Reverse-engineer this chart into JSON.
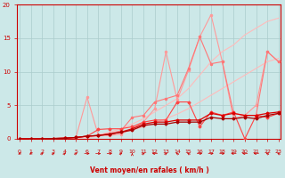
{
  "x": [
    0,
    1,
    2,
    3,
    4,
    5,
    6,
    7,
    8,
    9,
    10,
    11,
    12,
    13,
    14,
    15,
    16,
    17,
    18,
    19,
    20,
    21,
    22,
    23
  ],
  "lines": [
    {
      "y": [
        0,
        0,
        0,
        0,
        0,
        0.1,
        0.2,
        0.4,
        0.6,
        0.9,
        1.3,
        1.8,
        2.4,
        3.0,
        3.7,
        4.5,
        5.5,
        6.5,
        7.5,
        8.5,
        9.5,
        10.5,
        11.5,
        12.0
      ],
      "color": "#ffbbbb",
      "lw": 0.8,
      "marker": null
    },
    {
      "y": [
        0,
        0,
        0,
        0,
        0.05,
        0.15,
        0.3,
        0.6,
        1.0,
        1.5,
        2.2,
        3.0,
        4.0,
        5.0,
        6.0,
        7.5,
        9.5,
        11.5,
        13.0,
        14.0,
        15.5,
        16.5,
        17.5,
        18.0
      ],
      "color": "#ffbbbb",
      "lw": 0.8,
      "marker": null
    },
    {
      "y": [
        0,
        0,
        0,
        0.05,
        0.1,
        0.2,
        6.2,
        0.5,
        0.5,
        0.7,
        1.5,
        2.5,
        4.5,
        13.0,
        5.8,
        10.2,
        15.2,
        18.5,
        11.5,
        3.0,
        3.5,
        5.0,
        13.0,
        11.5
      ],
      "color": "#ff9999",
      "lw": 0.8,
      "marker": "o"
    },
    {
      "y": [
        0,
        0,
        0,
        0.05,
        0.1,
        0.2,
        0.4,
        0.5,
        0.8,
        1.2,
        3.2,
        3.5,
        5.5,
        6.0,
        6.5,
        10.5,
        15.2,
        11.2,
        11.5,
        3.8,
        3.5,
        3.5,
        13.0,
        11.5
      ],
      "color": "#ff7777",
      "lw": 0.8,
      "marker": "o"
    },
    {
      "y": [
        0,
        0,
        0,
        0.05,
        0.1,
        0.2,
        0.4,
        1.4,
        1.5,
        1.5,
        1.8,
        2.5,
        2.8,
        2.8,
        5.5,
        5.5,
        1.8,
        4.0,
        3.5,
        4.0,
        0.0,
        3.5,
        3.2,
        3.8
      ],
      "color": "#ff4444",
      "lw": 0.8,
      "marker": "D"
    },
    {
      "y": [
        0,
        0,
        0,
        0.05,
        0.1,
        0.2,
        0.4,
        0.5,
        0.7,
        1.0,
        1.5,
        2.2,
        2.5,
        2.5,
        2.8,
        2.8,
        2.8,
        3.8,
        3.5,
        3.8,
        3.5,
        3.5,
        3.8,
        4.0
      ],
      "color": "#dd0000",
      "lw": 0.9,
      "marker": "D"
    },
    {
      "y": [
        0,
        0,
        0,
        0.05,
        0.1,
        0.2,
        0.4,
        0.5,
        0.7,
        1.0,
        1.3,
        2.0,
        2.2,
        2.2,
        2.5,
        2.5,
        2.5,
        3.2,
        3.0,
        3.0,
        3.2,
        3.0,
        3.5,
        3.8
      ],
      "color": "#aa0000",
      "lw": 0.9,
      "marker": "D"
    }
  ],
  "xlim": [
    -0.2,
    23.2
  ],
  "ylim": [
    0,
    20
  ],
  "yticks": [
    0,
    5,
    10,
    15,
    20
  ],
  "xticks": [
    0,
    1,
    2,
    3,
    4,
    5,
    6,
    7,
    8,
    9,
    10,
    11,
    12,
    13,
    14,
    15,
    16,
    17,
    18,
    19,
    20,
    21,
    22,
    23
  ],
  "xlabel": "Vent moyen/en rafales ( km/h )",
  "bg_color": "#cce8e8",
  "grid_color": "#aacccc",
  "axis_color": "#cc0000",
  "label_color": "#cc0000",
  "tick_color": "#cc0000",
  "arrow_color": "#cc0000"
}
